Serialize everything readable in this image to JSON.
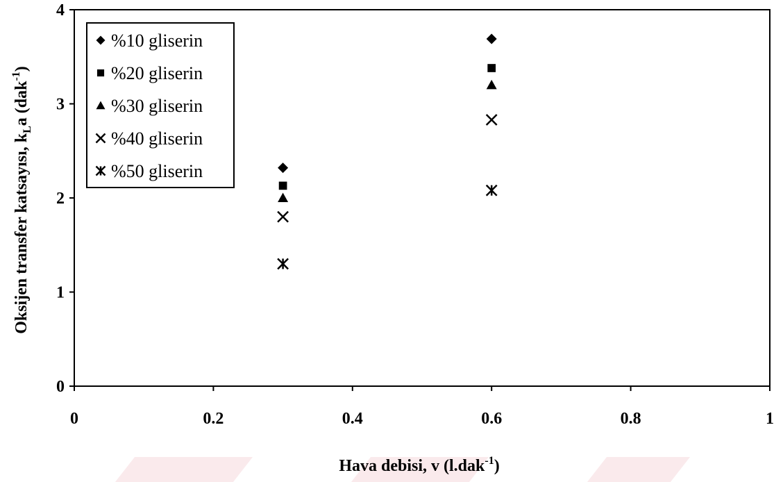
{
  "chart_data": {
    "type": "scatter",
    "xlabel_main": "Hava debisi, v (l.dak",
    "xlabel_sup": "-1",
    "xlabel_end": ")",
    "ylabel_main": "Oksijen transfer katsayısı, k",
    "ylabel_sub": "L",
    "ylabel_mid": "a (dak",
    "ylabel_sup": "-1",
    "ylabel_end": ")",
    "xlim": [
      0,
      1
    ],
    "ylim": [
      0,
      4
    ],
    "x_ticks": [
      "0",
      "0.2",
      "0.4",
      "0.6",
      "0.8",
      "1"
    ],
    "y_ticks": [
      "0",
      "1",
      "2",
      "3",
      "4"
    ],
    "grid": false,
    "legend_position": "top-left",
    "series": [
      {
        "name": "%10 gliserin",
        "marker": "diamond",
        "x": [
          0.3,
          0.6
        ],
        "y": [
          2.32,
          3.69
        ]
      },
      {
        "name": "%20 gliserin",
        "marker": "square",
        "x": [
          0.3,
          0.6
        ],
        "y": [
          2.13,
          3.38
        ]
      },
      {
        "name": "%30 gliserin",
        "marker": "triangle",
        "x": [
          0.3,
          0.6
        ],
        "y": [
          2.0,
          3.2
        ]
      },
      {
        "name": "%40 gliserin",
        "marker": "cross",
        "x": [
          0.3,
          0.6
        ],
        "y": [
          1.8,
          2.83
        ]
      },
      {
        "name": "%50 gliserin",
        "marker": "asterisk",
        "x": [
          0.3,
          0.6
        ],
        "y": [
          1.3,
          2.08
        ]
      }
    ]
  }
}
